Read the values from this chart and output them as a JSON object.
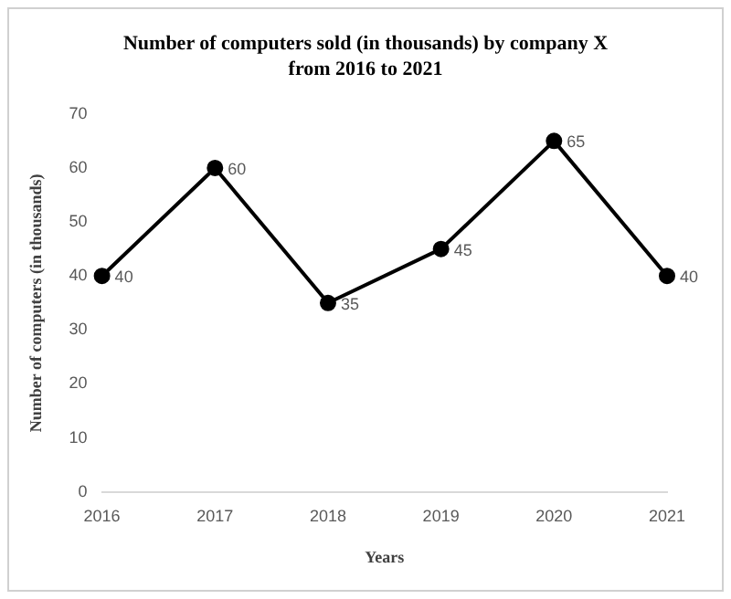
{
  "chart_data": {
    "type": "line",
    "title": "Number of computers sold (in thousands) by company X from 2016 to 2021",
    "xlabel": "Years",
    "ylabel": "Number of computers (in thousands)",
    "categories": [
      "2016",
      "2017",
      "2018",
      "2019",
      "2020",
      "2021"
    ],
    "series": [
      {
        "color": "#000000",
        "values": [
          40,
          60,
          35,
          45,
          65,
          40
        ]
      }
    ],
    "ylim": [
      0,
      70
    ],
    "yticks": [
      0,
      10,
      20,
      30,
      40,
      50,
      60,
      70
    ],
    "grid": false,
    "legend": false,
    "marker": "circle",
    "line_style": "solid",
    "data_labels": true
  }
}
